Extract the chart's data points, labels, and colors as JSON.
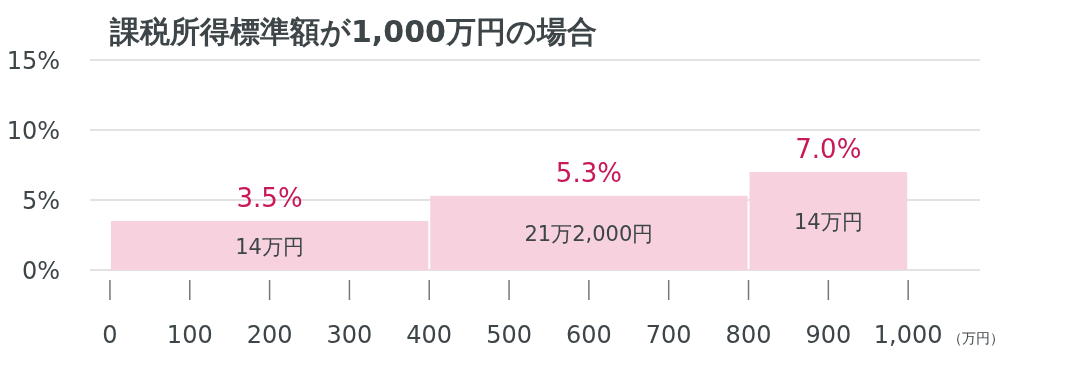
{
  "chart_data": {
    "type": "histogram",
    "title": "課税所得標準額が1,000万円の場合",
    "xlabel": "（万円）",
    "bins": [
      0,
      400,
      800,
      1000
    ],
    "values": [
      3.5,
      5.3,
      7.0
    ],
    "color": "#f7d2de",
    "value_labels": [
      "3.5%",
      "5.3%",
      "7.0%"
    ],
    "annotations": [
      "14万円",
      "21万2,000円",
      "14万円"
    ],
    "xlim": [
      -25,
      1090
    ],
    "ylim": [
      0,
      15
    ],
    "xticks": [
      0,
      100,
      200,
      300,
      400,
      500,
      600,
      700,
      800,
      900,
      {
        "value": 1000,
        "label": "1,000"
      }
    ],
    "yticks": [
      {
        "value": 0,
        "label": "0%"
      },
      {
        "value": 5,
        "label": "5%"
      },
      {
        "value": 10,
        "label": "10%"
      },
      {
        "value": 15,
        "label": "15%"
      }
    ],
    "grid": "y"
  }
}
